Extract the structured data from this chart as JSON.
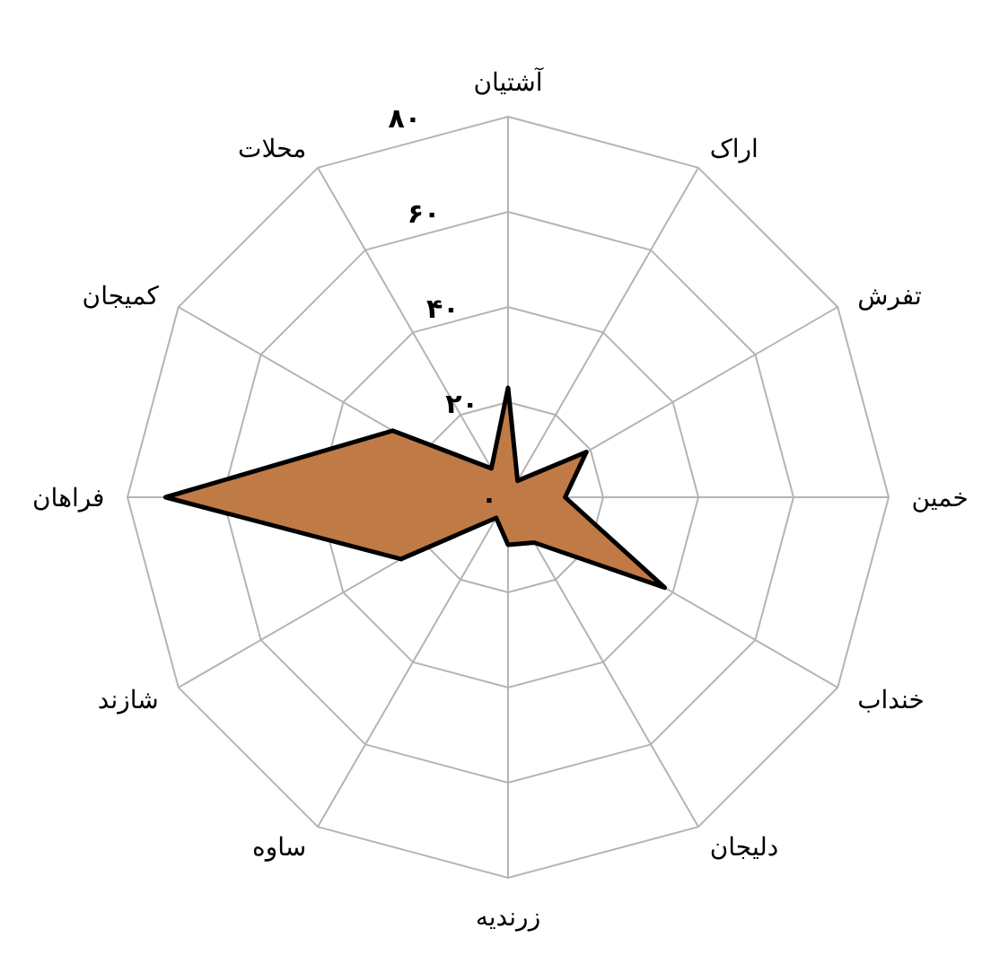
{
  "chart_data": {
    "type": "radar",
    "categories": [
      "آشتیان",
      "اراک",
      "تفرش",
      "خمین",
      "خنداب",
      "دلیجان",
      "زرندیه",
      "ساوه",
      "شازند",
      "فراهان",
      "کمیجان",
      "محلات"
    ],
    "series": [
      {
        "color": "#c07a45",
        "values": [
          23,
          4,
          19,
          12,
          38,
          11,
          10,
          5,
          26,
          72,
          28,
          7
        ]
      }
    ],
    "ylim": [
      0,
      80
    ],
    "yticks": [
      {
        "value": 0,
        "label": "۰"
      },
      {
        "value": 20,
        "label": "۲۰"
      },
      {
        "value": 40,
        "label": "۴۰"
      },
      {
        "value": 60,
        "label": "۶۰"
      },
      {
        "value": 80,
        "label": "۸۰"
      }
    ],
    "grid": true
  }
}
